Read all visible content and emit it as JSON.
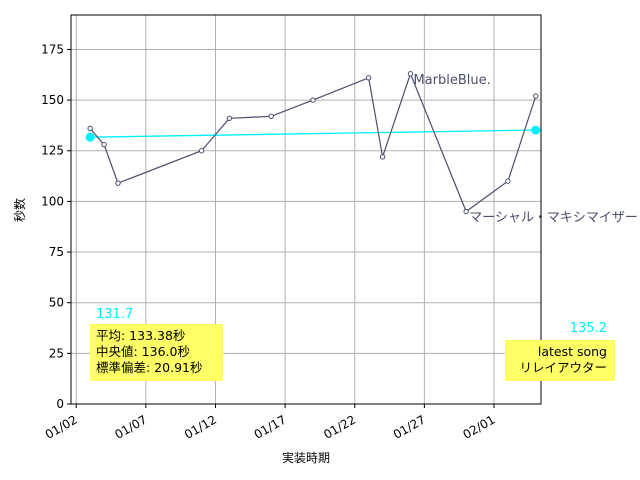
{
  "chart_data": {
    "type": "line",
    "xlabel": "実装時期",
    "ylabel": "秒数",
    "ylim": [
      0,
      192
    ],
    "xlim": [
      "2024-01-01T15:00",
      "2024-02-04T09:00"
    ],
    "y_ticks": [
      0,
      25,
      50,
      75,
      100,
      125,
      150,
      175
    ],
    "x_ticks": [
      {
        "date": "2024-01-02",
        "label": "01/02"
      },
      {
        "date": "2024-01-07",
        "label": "01/07"
      },
      {
        "date": "2024-01-12",
        "label": "01/12"
      },
      {
        "date": "2024-01-17",
        "label": "01/17"
      },
      {
        "date": "2024-01-22",
        "label": "01/22"
      },
      {
        "date": "2024-01-27",
        "label": "01/27"
      },
      {
        "date": "2024-02-01",
        "label": "02/01"
      }
    ],
    "grid": true,
    "series": [
      {
        "color": "#4b4f6e",
        "points": [
          {
            "x": "2024-01-03",
            "y": 136
          },
          {
            "x": "2024-01-04",
            "y": 128
          },
          {
            "x": "2024-01-05",
            "y": 109
          },
          {
            "x": "2024-01-11",
            "y": 125
          },
          {
            "x": "2024-01-13",
            "y": 141
          },
          {
            "x": "2024-01-16",
            "y": 142
          },
          {
            "x": "2024-01-19",
            "y": 150
          },
          {
            "x": "2024-01-23",
            "y": 161
          },
          {
            "x": "2024-01-24",
            "y": 122
          },
          {
            "x": "2024-01-26",
            "y": 163
          },
          {
            "x": "2024-01-30",
            "y": 95
          },
          {
            "x": "2024-02-02",
            "y": 110
          },
          {
            "x": "2024-02-04",
            "y": 152
          }
        ]
      },
      {
        "color": "#00f0ff",
        "points": [
          {
            "x": "2024-01-03",
            "y": 131.7
          },
          {
            "x": "2024-02-04",
            "y": 135.2
          }
        ]
      }
    ],
    "point_labels": [
      {
        "x": "2024-01-26",
        "y": 163,
        "text": "MarbleBlue."
      },
      {
        "x": "2024-01-30",
        "y": 95,
        "text": "マーシャル・マキシマイザー"
      }
    ],
    "trend_labels": [
      "131.7",
      "135.2"
    ],
    "stats_box": [
      "平均: 133.38秒",
      "中央値: 136.0秒",
      "標準偏差:  20.91秒"
    ],
    "latest_box": [
      "latest song",
      "リレイアウター"
    ],
    "colors": {
      "line": "#4b4f6e",
      "trend": "#00f0ff",
      "box": "#ffff66",
      "grid": "#b0b0b0"
    }
  }
}
